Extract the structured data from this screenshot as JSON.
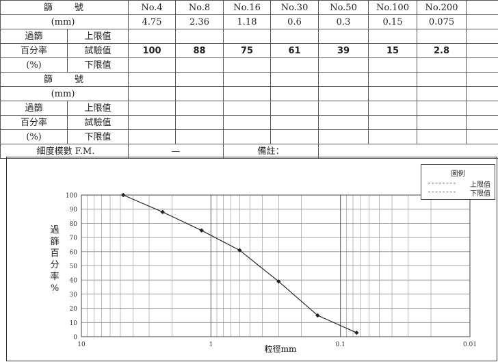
{
  "table": {
    "sieve_label": "篩　　號",
    "mm_label": "(mm)",
    "sieves": [
      "No.4",
      "No.8",
      "No.16",
      "No.30",
      "No.50",
      "No.100",
      "No.200"
    ],
    "sizes_mm": [
      "4.75",
      "2.36",
      "1.18",
      "0.6",
      "0.3",
      "0.15",
      "0.075"
    ],
    "pass_label_1": "過篩",
    "pass_label_2": "百分率",
    "pass_label_3": "(%)",
    "upper_label": "上限值",
    "test_label": "試驗值",
    "lower_label": "下限值",
    "test_values": [
      "100",
      "88",
      "75",
      "61",
      "39",
      "15",
      "2.8"
    ],
    "fm_label": "細度模數 F.M.",
    "fm_value": "—",
    "remark_label": "備註："
  },
  "chart_data": {
    "type": "line",
    "xlabel": "粒徑mm",
    "ylabel": "過篩百分率%",
    "x_scale": "log",
    "x_reversed": true,
    "xlim": [
      10,
      0.01
    ],
    "ylim": [
      0,
      100
    ],
    "y_ticks": [
      0,
      10,
      20,
      30,
      40,
      50,
      60,
      70,
      80,
      90,
      100
    ],
    "x_ticks": [
      "10",
      "1",
      "0.1",
      "0.01"
    ],
    "grid": true,
    "legend_position": "top-right",
    "legend_title": "圖例",
    "legend": [
      "上限值",
      "下限值"
    ],
    "series": [
      {
        "x": [
          4.75,
          2.36,
          1.18,
          0.6,
          0.3,
          0.15,
          0.075
        ],
        "y": [
          100,
          88,
          75,
          61,
          39,
          15,
          2.8
        ]
      }
    ]
  }
}
